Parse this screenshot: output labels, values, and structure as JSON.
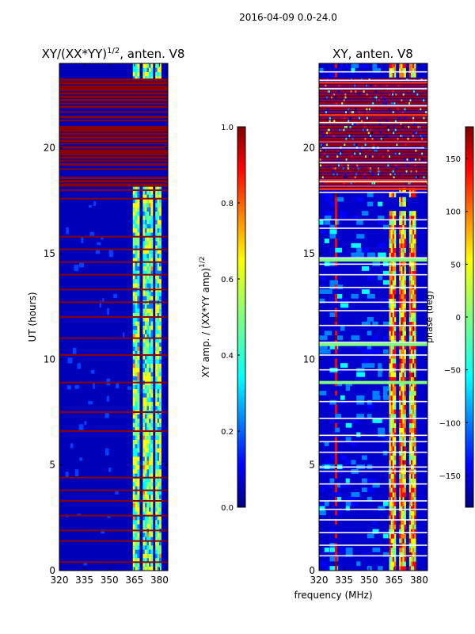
{
  "figure_title": "2016-04-09 0.0-24.0",
  "colors": {
    "jet": [
      "#000080",
      "#0000ff",
      "#0080ff",
      "#00ffff",
      "#80ff80",
      "#ffff00",
      "#ff8000",
      "#ff0000",
      "#800000"
    ],
    "flag_line": "#8b0000",
    "gap_line": "#ffffff"
  },
  "chart_data": [
    {
      "type": "heatmap",
      "title_main": "XY/(XX*YY)",
      "title_sup": "1/2",
      "title_rest": ", anten. V8",
      "xlabel": "",
      "ylabel": "UT (hours)",
      "xlim": [
        320,
        385
      ],
      "ylim": [
        0,
        24
      ],
      "xticks": [
        320,
        335,
        350,
        365,
        380
      ],
      "yticks": [
        0,
        5,
        10,
        15,
        20
      ],
      "bright_bands_mhz": [
        [
          364,
          368
        ],
        [
          370,
          376
        ],
        [
          377.5,
          381
        ]
      ],
      "flag_hours": [
        0.4,
        1.4,
        1.9,
        2.6,
        3.3,
        3.8,
        4.4,
        6.6,
        7.5,
        8.9,
        10.2,
        11.0,
        12.0,
        12.7,
        13.3,
        14.0,
        14.6,
        15.2,
        15.8,
        17.6,
        18.0,
        18.2,
        18.6,
        19.0,
        19.4,
        19.8,
        20.2,
        20.5,
        20.9,
        21.3,
        21.7,
        22.1,
        22.4,
        22.8,
        23.1
      ],
      "flag_block_hours": [
        18.2,
        23.2
      ],
      "colorbar": {
        "label": "XY amp. / (XX*YY amp)",
        "label_sup": "1/2",
        "range": [
          0.0,
          1.0
        ],
        "ticks": [
          "0.0",
          "0.2",
          "0.4",
          "0.6",
          "0.8",
          "1.0"
        ]
      }
    },
    {
      "type": "heatmap",
      "title_main": "XY, anten. V8",
      "xlabel": "frequency (MHz)",
      "ylabel": "",
      "xlim": [
        320,
        385
      ],
      "ylim": [
        0,
        24
      ],
      "xticks": [
        320,
        335,
        350,
        365,
        380
      ],
      "yticks": [
        0,
        5,
        10,
        15,
        20
      ],
      "bright_bands_mhz": [
        [
          362,
          366
        ],
        [
          368,
          372
        ],
        [
          374,
          378
        ]
      ],
      "gap_hours": [
        0.7,
        1.2,
        1.8,
        2.4,
        2.9,
        3.3,
        4.1,
        4.7,
        4.9,
        5.6,
        6.1,
        6.4,
        7.2,
        8.0,
        9.5,
        10.2,
        10.8,
        11.6,
        12.3,
        12.7,
        13.4,
        14.0,
        14.5,
        14.8,
        16.2,
        16.6,
        17.9,
        18.4,
        19.3,
        20.0,
        21.2,
        22.0,
        22.8,
        23.2,
        23.6
      ],
      "uniform_hours": [
        8.9,
        10.7,
        14.7
      ],
      "noise_block_hours": [
        18.0,
        23.2
      ],
      "colorbar": {
        "label": "phase (deg)",
        "range": [
          -180,
          180
        ],
        "ticks": [
          "150",
          "100",
          "50",
          "0",
          "−50",
          "−100",
          "−150"
        ]
      }
    }
  ]
}
